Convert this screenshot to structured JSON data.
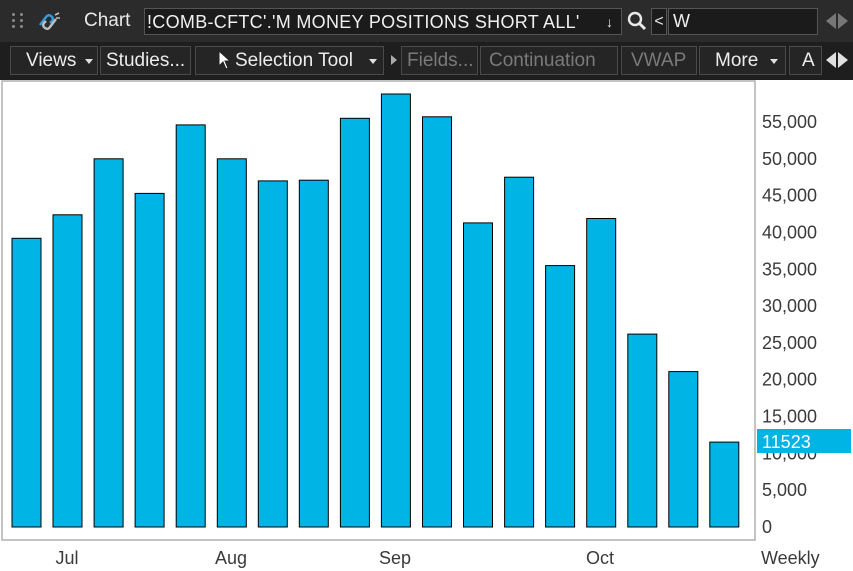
{
  "header": {
    "chart_label": "Chart",
    "symbol": "!COMB-CFTC'.'M MONEY POSITIONS SHORT ALL'",
    "symbol_dropdown_glyph": "↓",
    "prev_glyph": "<",
    "aggregation": "W",
    "icons": [
      "grip-icon",
      "link-icon",
      "search-icon",
      "scroll-left-icon",
      "scroll-right-icon"
    ]
  },
  "toolbar": {
    "views_label": "Views",
    "studies_label": "Studies...",
    "selection_tool_label": "Selection Tool",
    "fields_label": "Fields...",
    "continuation_label": "Continuation",
    "vwap_label": "VWAP",
    "more_label": "More",
    "a_label": "A"
  },
  "chart_data": {
    "type": "bar",
    "title": "",
    "xlabel": "",
    "ylabel": "",
    "period_label": "Weekly",
    "ylim": [
      0,
      60000
    ],
    "yticks": [
      "0",
      "5,000",
      "10,000",
      "15,000",
      "20,000",
      "25,000",
      "30,000",
      "35,000",
      "40,000",
      "45,000",
      "50,000",
      "55,000"
    ],
    "xticks": [
      "Jul",
      "Aug",
      "Sep",
      "Oct"
    ],
    "values": [
      39200,
      42400,
      50000,
      45300,
      54600,
      50000,
      47000,
      47100,
      55500,
      58800,
      55700,
      41300,
      47500,
      35500,
      41900,
      26200,
      21100,
      11523
    ],
    "last_value_label": "11523",
    "colors": {
      "bar": "#00b4e6",
      "bar_stroke": "#000000",
      "last_value_bg": "#00b4e6"
    }
  }
}
